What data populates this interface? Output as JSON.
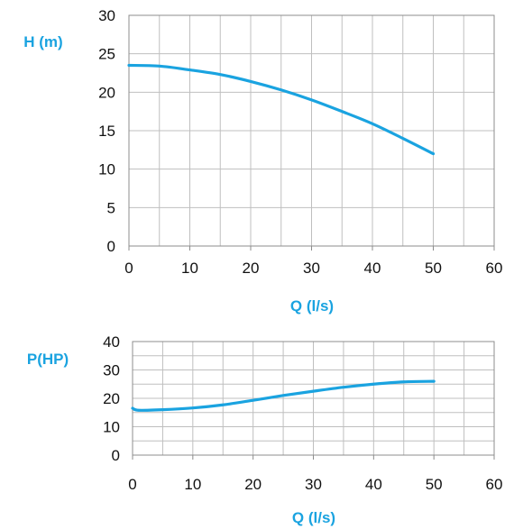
{
  "chart_data": [
    {
      "type": "line",
      "xlabel": "Q (l/s)",
      "ylabel": "H (m)",
      "xlim": [
        0,
        60
      ],
      "ylim": [
        0,
        30
      ],
      "x_ticks": [
        0,
        10,
        20,
        30,
        40,
        50,
        60
      ],
      "y_ticks": [
        0,
        5,
        10,
        15,
        20,
        25,
        30
      ],
      "grid": true,
      "color": "#1aa3e0",
      "series": [
        {
          "x": [
            0,
            5,
            10,
            15,
            20,
            25,
            30,
            35,
            40,
            45,
            50
          ],
          "y": [
            23.5,
            23.4,
            22.9,
            22.3,
            21.4,
            20.3,
            19.0,
            17.5,
            15.9,
            14.0,
            12.0
          ]
        }
      ]
    },
    {
      "type": "line",
      "xlabel": "Q (l/s)",
      "ylabel": "P(HP)",
      "xlim": [
        0,
        60
      ],
      "ylim": [
        0,
        40
      ],
      "x_ticks": [
        0,
        10,
        20,
        30,
        40,
        50,
        60
      ],
      "y_ticks": [
        0,
        10,
        20,
        30,
        40
      ],
      "grid": true,
      "color": "#1aa3e0",
      "series": [
        {
          "x": [
            0,
            1,
            5,
            10,
            15,
            20,
            25,
            30,
            35,
            40,
            45,
            50
          ],
          "y": [
            16.5,
            15.8,
            16.0,
            16.6,
            17.7,
            19.3,
            21.0,
            22.5,
            23.9,
            25.0,
            25.8,
            26.0
          ]
        }
      ]
    }
  ]
}
